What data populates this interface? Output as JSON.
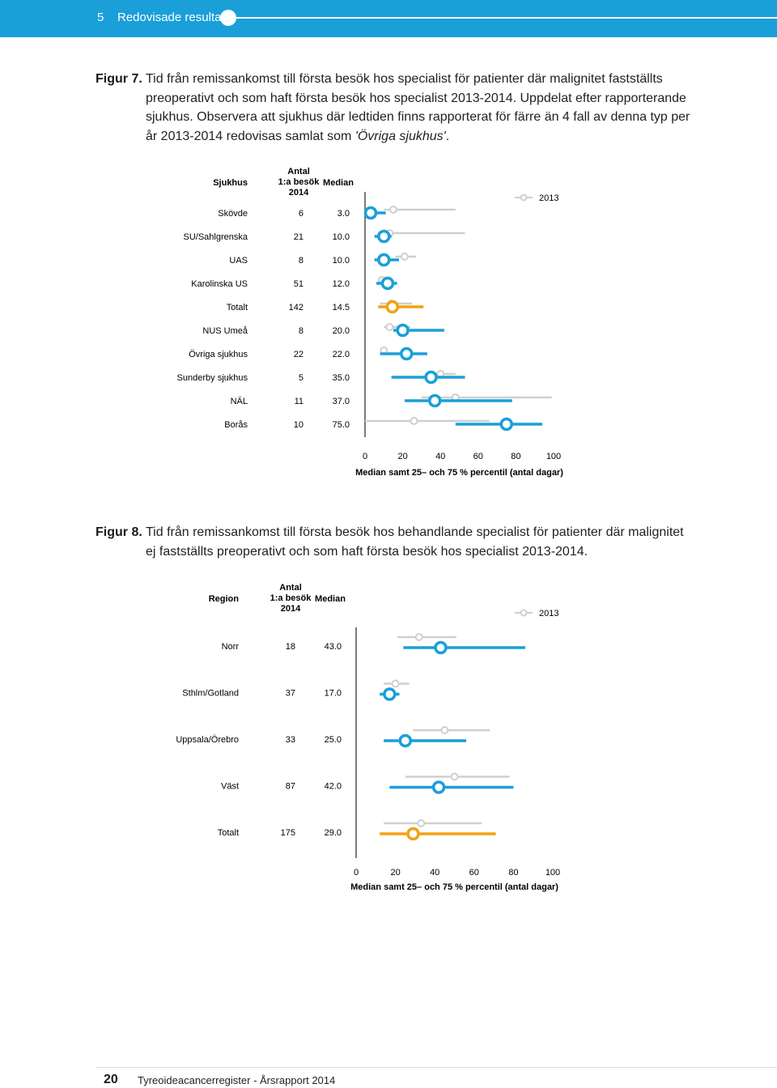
{
  "header": {
    "section_number": "5",
    "section_title": "Redovisade resultat"
  },
  "figure7": {
    "label": "Figur 7.",
    "caption": "Tid från remissankomst till första besök hos specialist för patienter där malignitet fastställts preoperativt och som haft första besök hos specialist 2013-2014. Uppdelat efter rapporterande sjukhus. Observera att sjukhus där ledtiden finns rapporterat för färre än 4 fall av denna typ per år 2013-2014 redovisas samlat som ",
    "caption_italic": "'Övriga sjukhus'",
    "caption_end": "."
  },
  "figure8": {
    "label": "Figur 8.",
    "caption": "Tid från remissankomst till första besök hos behandlande specialist för patienter där malignitet ej fastställts preoperativt och som haft första besök hos specialist 2013-2014."
  },
  "footer": {
    "page_number": "20",
    "text": "Tyreoideacancerregister - Årsrapport 2014"
  },
  "colors": {
    "current": "#1a9fd9",
    "total": "#f2a30f",
    "previous": "#cfcfcf",
    "axis": "#222222"
  },
  "chart_data": [
    {
      "type": "range-dot",
      "col_headers": {
        "name": "Sjukhus",
        "count": [
          "Antal",
          "1:a besök",
          "2014"
        ],
        "median": "Median"
      },
      "legend": "2013",
      "xticks": [
        "0",
        "20",
        "40",
        "60",
        "80",
        "100"
      ],
      "xlim": [
        0,
        100
      ],
      "xlabel": "Median samt 25– och 75 % percentil (antal dagar)",
      "rows": [
        {
          "name": "Skövde",
          "count": "6",
          "median_label": "3.0",
          "median": 3,
          "q1": 0,
          "q3": 11,
          "prev_median": 15,
          "prev_q1": 10,
          "prev_q3": 48,
          "total": false
        },
        {
          "name": "SU/Sahlgrenska",
          "count": "21",
          "median_label": "10.0",
          "median": 10,
          "q1": 5,
          "q3": 14,
          "prev_median": 13,
          "prev_q1": 8,
          "prev_q3": 53,
          "total": false
        },
        {
          "name": "UAS",
          "count": "8",
          "median_label": "10.0",
          "median": 10,
          "q1": 5,
          "q3": 18,
          "prev_median": 21,
          "prev_q1": 16,
          "prev_q3": 27,
          "total": false
        },
        {
          "name": "Karolinska US",
          "count": "51",
          "median_label": "12.0",
          "median": 12,
          "q1": 6,
          "q3": 17,
          "prev_median": 9,
          "prev_q1": 7,
          "prev_q3": 14,
          "total": false
        },
        {
          "name": "Totalt",
          "count": "142",
          "median_label": "14.5",
          "median": 14.5,
          "q1": 7,
          "q3": 31,
          "prev_median": 14,
          "prev_q1": 8,
          "prev_q3": 25,
          "total": true
        },
        {
          "name": "NUS Umeå",
          "count": "8",
          "median_label": "20.0",
          "median": 20,
          "q1": 15,
          "q3": 42,
          "prev_median": 13,
          "prev_q1": 10,
          "prev_q3": 24,
          "total": false
        },
        {
          "name": "Övriga sjukhus",
          "count": "22",
          "median_label": "22.0",
          "median": 22,
          "q1": 8,
          "q3": 33,
          "prev_median": 10,
          "prev_q1": 9,
          "prev_q3": 12,
          "total": false
        },
        {
          "name": "Sunderby sjukhus",
          "count": "5",
          "median_label": "35.0",
          "median": 35,
          "q1": 14,
          "q3": 53,
          "prev_median": 40,
          "prev_q1": 33,
          "prev_q3": 48,
          "total": false
        },
        {
          "name": "NÄL",
          "count": "11",
          "median_label": "37.0",
          "median": 37,
          "q1": 21,
          "q3": 78,
          "prev_median": 48,
          "prev_q1": 30,
          "prev_q3": 99,
          "total": false
        },
        {
          "name": "Borås",
          "count": "10",
          "median_label": "75.0",
          "median": 75,
          "q1": 48,
          "q3": 94,
          "prev_median": 26,
          "prev_q1": 0,
          "prev_q3": 66,
          "total": false
        }
      ]
    },
    {
      "type": "range-dot",
      "col_headers": {
        "name": "Region",
        "count": [
          "Antal",
          "1:a besök",
          "2014"
        ],
        "median": "Median"
      },
      "legend": "2013",
      "xticks": [
        "0",
        "20",
        "40",
        "60",
        "80",
        "100"
      ],
      "xlim": [
        0,
        100
      ],
      "xlabel": "Median samt 25– och 75 % percentil (antal dagar)",
      "rows": [
        {
          "name": "Norr",
          "count": "18",
          "median_label": "43.0",
          "median": 43,
          "q1": 24,
          "q3": 86,
          "prev_median": 32,
          "prev_q1": 21,
          "prev_q3": 51,
          "total": false
        },
        {
          "name": "Sthlm/Gotland",
          "count": "37",
          "median_label": "17.0",
          "median": 17,
          "q1": 12,
          "q3": 22,
          "prev_median": 20,
          "prev_q1": 14,
          "prev_q3": 27,
          "total": false
        },
        {
          "name": "Uppsala/Örebro",
          "count": "33",
          "median_label": "25.0",
          "median": 25,
          "q1": 14,
          "q3": 56,
          "prev_median": 45,
          "prev_q1": 29,
          "prev_q3": 68,
          "total": false
        },
        {
          "name": "Väst",
          "count": "87",
          "median_label": "42.0",
          "median": 42,
          "q1": 17,
          "q3": 80,
          "prev_median": 50,
          "prev_q1": 25,
          "prev_q3": 78,
          "total": false
        },
        {
          "name": "Totalt",
          "count": "175",
          "median_label": "29.0",
          "median": 29,
          "q1": 12,
          "q3": 71,
          "prev_median": 33,
          "prev_q1": 14,
          "prev_q3": 64,
          "total": true
        }
      ]
    }
  ]
}
